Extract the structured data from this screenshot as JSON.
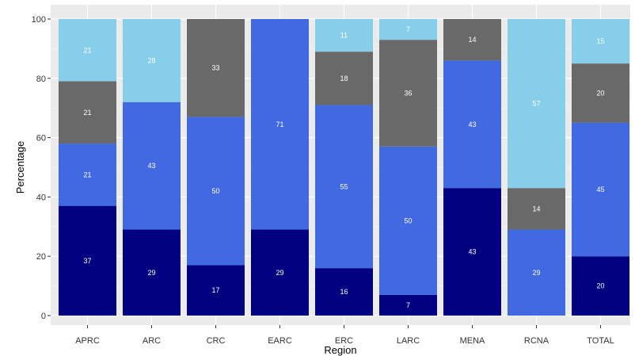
{
  "chart_data": {
    "type": "bar",
    "stacked": true,
    "xlabel": "Region",
    "ylabel": "Percentage",
    "ylim": [
      0,
      100
    ],
    "yticks": [
      0,
      20,
      40,
      60,
      80,
      100
    ],
    "grid": true,
    "legend": "none",
    "categories": [
      "APRC",
      "ARC",
      "CRC",
      "EARC",
      "ERC",
      "LARC",
      "MENA",
      "RCNA",
      "TOTAL"
    ],
    "series": [
      {
        "color": "#000080",
        "values": [
          37,
          29,
          17,
          29,
          16,
          7,
          43,
          0,
          20
        ]
      },
      {
        "color": "#4169E1",
        "values": [
          21,
          43,
          50,
          71,
          55,
          50,
          43,
          29,
          45
        ]
      },
      {
        "color": "#696969",
        "values": [
          21,
          0,
          33,
          0,
          18,
          36,
          14,
          14,
          20
        ]
      },
      {
        "color": "#87CEEB",
        "values": [
          21,
          28,
          0,
          0,
          11,
          7,
          0,
          57,
          15
        ]
      }
    ]
  }
}
